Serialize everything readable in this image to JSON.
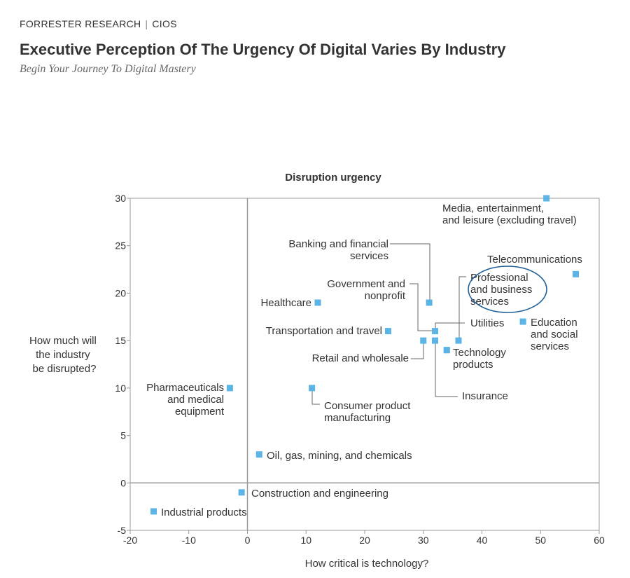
{
  "header": {
    "publisher": "FORRESTER RESEARCH",
    "separator": "|",
    "section": "CIOS",
    "title": "Executive Perception Of The Urgency Of Digital Varies By Industry",
    "subtitle": "Begin Your Journey To Digital Mastery"
  },
  "colors": {
    "point": "#5bb4e5",
    "leader": "#666666",
    "highlight": "#1f5f99",
    "axis": "#999999"
  },
  "chart_data": {
    "type": "scatter",
    "title": "Disruption urgency",
    "xlabel": "How critical is technology?",
    "ylabel": [
      "How much will",
      "the industry",
      "be disrupted?"
    ],
    "xlim": [
      -20,
      60
    ],
    "ylim": [
      -5,
      30
    ],
    "xticks": [
      -20,
      -10,
      0,
      10,
      20,
      30,
      40,
      50,
      60
    ],
    "yticks": [
      -5,
      0,
      5,
      10,
      15,
      20,
      25,
      30
    ],
    "points": [
      {
        "name": [
          "Media, entertainment,",
          "and leisure (excluding travel)"
        ],
        "x": 51,
        "y": 30
      },
      {
        "name": [
          "Telecommunications"
        ],
        "x": 56,
        "y": 22
      },
      {
        "name": [
          "Banking and financial",
          "services"
        ],
        "x": 31,
        "y": 19
      },
      {
        "name": [
          "Government and",
          "nonprofit"
        ],
        "x": 32,
        "y": 16
      },
      {
        "name": [
          "Professional",
          "and business",
          "services"
        ],
        "x": 36,
        "y": 15,
        "highlight": true
      },
      {
        "name": [
          "Healthcare"
        ],
        "x": 12,
        "y": 19
      },
      {
        "name": [
          "Utilities"
        ],
        "x": 34,
        "y": 14
      },
      {
        "name": [
          "Education",
          "and social",
          "services"
        ],
        "x": 47,
        "y": 17
      },
      {
        "name": [
          "Transportation and travel"
        ],
        "x": 24,
        "y": 16
      },
      {
        "name": [
          "Retail and wholesale"
        ],
        "x": 30,
        "y": 15
      },
      {
        "name": [
          "Technology",
          "products"
        ],
        "x": 34,
        "y": 14
      },
      {
        "name": [
          "Insurance"
        ],
        "x": 32,
        "y": 15
      },
      {
        "name": [
          "Pharmaceuticals",
          "and medical",
          "equipment"
        ],
        "x": -3,
        "y": 10
      },
      {
        "name": [
          "Consumer product",
          "manufacturing"
        ],
        "x": 11,
        "y": 10
      },
      {
        "name": [
          "Oil, gas, mining, and chemicals"
        ],
        "x": 2,
        "y": 3
      },
      {
        "name": [
          "Construction and engineering"
        ],
        "x": -1,
        "y": -1
      },
      {
        "name": [
          "Industrial products"
        ],
        "x": -16,
        "y": -3
      }
    ]
  }
}
